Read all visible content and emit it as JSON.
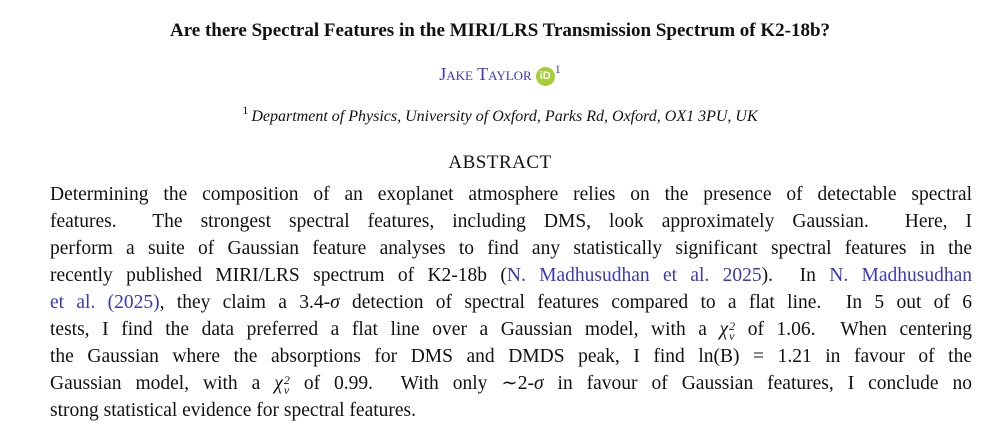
{
  "header": {
    "title": "Are there Spectral Features in the MIRI/LRS Transmission Spectrum of K2-18b?",
    "author": "Jake Taylor",
    "orcid_icon": "iD",
    "author_affiliation_mark": "1",
    "affiliation_mark": "1",
    "affiliation": "Department of Physics, University of Oxford, Parks Rd, Oxford, OX1 3PU, UK"
  },
  "abstract": {
    "heading": "ABSTRACT",
    "lines": [
      [
        {
          "text": "Determining the composition of an exoplanet atmosphere relies on the presence of detectable spectral"
        }
      ],
      [
        {
          "text": "features.  The strongest spectral features, including DMS, look approximately Gaussian.  Here, I"
        }
      ],
      [
        {
          "text": "perform a suite of Gaussian feature analyses to find any statistically significant spectral features in the"
        }
      ],
      [
        {
          "text": "recently published MIRI/LRS spectrum of K2-18b ("
        },
        {
          "text": "N. Madhusudhan et al. 2025",
          "style": "link"
        },
        {
          "text": ").  In "
        },
        {
          "text": "N. Madhusudhan",
          "style": "link"
        }
      ],
      [
        {
          "text": "et al. (2025)",
          "style": "link"
        },
        {
          "text": ", they claim a 3.4-"
        },
        {
          "text": "σ",
          "style": "math"
        },
        {
          "text": " detection of spectral features compared to a flat line.  In 5 out of 6"
        }
      ],
      [
        {
          "text": "tests, I find the data preferred a flat line over a Gaussian model, with a "
        },
        {
          "text": "χ",
          "style": "math",
          "sup": "2",
          "sub": "ν"
        },
        {
          "text": " of 1.06.  When centering"
        }
      ],
      [
        {
          "text": "the Gaussian where the absorptions for DMS and DMDS peak, I find ln(B) = 1.21 in favour of the"
        }
      ],
      [
        {
          "text": "Gaussian model, with a "
        },
        {
          "text": "χ",
          "style": "math",
          "sup": "2",
          "sub": "ν"
        },
        {
          "text": " of 0.99.  With only ∼2-"
        },
        {
          "text": "σ",
          "style": "math"
        },
        {
          "text": " in favour of Gaussian features, I conclude no"
        }
      ],
      [
        {
          "text": "strong statistical evidence for spectral features."
        }
      ]
    ]
  }
}
